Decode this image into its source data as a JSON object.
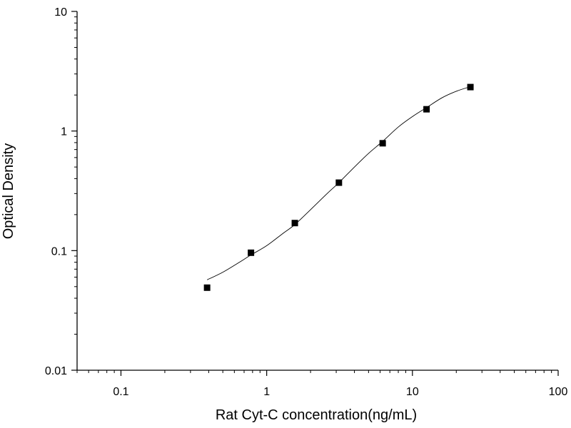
{
  "chart_data": {
    "type": "scatter",
    "title": "",
    "xlabel": "Rat Cyt-C concentration(ng/mL)",
    "ylabel": "Optical Density",
    "xscale": "log",
    "yscale": "log",
    "xlim": [
      0.05,
      100
    ],
    "ylim": [
      0.01,
      10
    ],
    "xticks": [
      {
        "value": 0.1,
        "label": "0.1"
      },
      {
        "value": 1,
        "label": "1"
      },
      {
        "value": 10,
        "label": "10"
      },
      {
        "value": 100,
        "label": "100"
      }
    ],
    "yticks": [
      {
        "value": 0.01,
        "label": "0.01"
      },
      {
        "value": 0.1,
        "label": "0.1"
      },
      {
        "value": 1,
        "label": "1"
      },
      {
        "value": 10,
        "label": "10"
      }
    ],
    "grid": false,
    "legend": "none",
    "marker": "square",
    "series": [
      {
        "points": [
          {
            "x": 0.39,
            "y": 0.049
          },
          {
            "x": 0.78,
            "y": 0.096
          },
          {
            "x": 1.56,
            "y": 0.17
          },
          {
            "x": 3.13,
            "y": 0.37
          },
          {
            "x": 6.25,
            "y": 0.79
          },
          {
            "x": 12.5,
            "y": 1.52
          },
          {
            "x": 25,
            "y": 2.33
          }
        ]
      }
    ],
    "fit_curve": {
      "points": [
        {
          "x": 0.39,
          "y": 0.057
        },
        {
          "x": 0.5,
          "y": 0.066
        },
        {
          "x": 0.65,
          "y": 0.08
        },
        {
          "x": 0.78,
          "y": 0.092
        },
        {
          "x": 1.0,
          "y": 0.11
        },
        {
          "x": 1.3,
          "y": 0.14
        },
        {
          "x": 1.56,
          "y": 0.165
        },
        {
          "x": 2.0,
          "y": 0.22
        },
        {
          "x": 2.6,
          "y": 0.3
        },
        {
          "x": 3.13,
          "y": 0.37
        },
        {
          "x": 4.0,
          "y": 0.5
        },
        {
          "x": 5.0,
          "y": 0.65
        },
        {
          "x": 6.25,
          "y": 0.82
        },
        {
          "x": 8.0,
          "y": 1.08
        },
        {
          "x": 10.0,
          "y": 1.32
        },
        {
          "x": 12.5,
          "y": 1.57
        },
        {
          "x": 16.0,
          "y": 1.9
        },
        {
          "x": 20.0,
          "y": 2.15
        },
        {
          "x": 25.0,
          "y": 2.35
        }
      ]
    },
    "colors": {
      "axis": "#000000",
      "marker": "#000000",
      "curve": "#000000"
    }
  }
}
